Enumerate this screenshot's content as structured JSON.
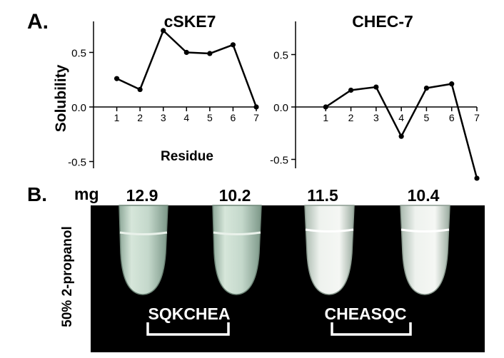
{
  "panel_a": {
    "label": "A.",
    "ylabel": "Solubility",
    "xlabel": "Residue"
  },
  "panel_b": {
    "label": "B.",
    "mass_label": "mg",
    "side_label": "50% 2-propanol",
    "masses": [
      "12.9",
      "10.2",
      "11.5",
      "10.4"
    ],
    "groups": [
      "SQKCHEA",
      "CHEASQC"
    ],
    "tubes": [
      {
        "mass": "12.9",
        "state": "clear"
      },
      {
        "mass": "10.2",
        "state": "clear"
      },
      {
        "mass": "11.5",
        "state": "cloudy"
      },
      {
        "mass": "10.4",
        "state": "cloudy"
      }
    ],
    "colors": {
      "background": "#000000",
      "clear_liquid": "#cfe0d6",
      "precipitate": "#f2f4f1",
      "label": "#ffffff"
    }
  },
  "chart_data": [
    {
      "type": "line",
      "title": "cSKE7",
      "xlabel": "Residue",
      "ylabel": "Solubility",
      "x": [
        1,
        2,
        3,
        4,
        5,
        6,
        7
      ],
      "values": [
        0.26,
        0.16,
        0.7,
        0.5,
        0.49,
        0.57,
        0.0
      ],
      "xticks": [
        "1",
        "2",
        "3",
        "4",
        "5",
        "6",
        "7"
      ],
      "yticks": [
        "-0.5",
        "0.0",
        "0.5"
      ],
      "ytick_values": [
        -0.5,
        0.0,
        0.5
      ],
      "xlim": [
        0,
        7
      ],
      "ylim": [
        -0.65,
        0.75
      ],
      "grid": false,
      "color": "#000000"
    },
    {
      "type": "line",
      "title": "CHEC-7",
      "xlabel": "",
      "ylabel": "",
      "x": [
        1,
        2,
        3,
        4,
        5,
        6,
        7
      ],
      "values": [
        0.0,
        0.16,
        0.19,
        -0.28,
        0.18,
        0.22,
        -0.68
      ],
      "xticks": [
        "1",
        "2",
        "3",
        "4",
        "5",
        "6",
        "7"
      ],
      "yticks": [
        "-0.5",
        "0.0",
        "0.5"
      ],
      "ytick_values": [
        -0.5,
        0.0,
        0.5
      ],
      "xlim": [
        0,
        7
      ],
      "ylim": [
        -0.7,
        0.75
      ],
      "grid": false,
      "color": "#000000"
    }
  ]
}
